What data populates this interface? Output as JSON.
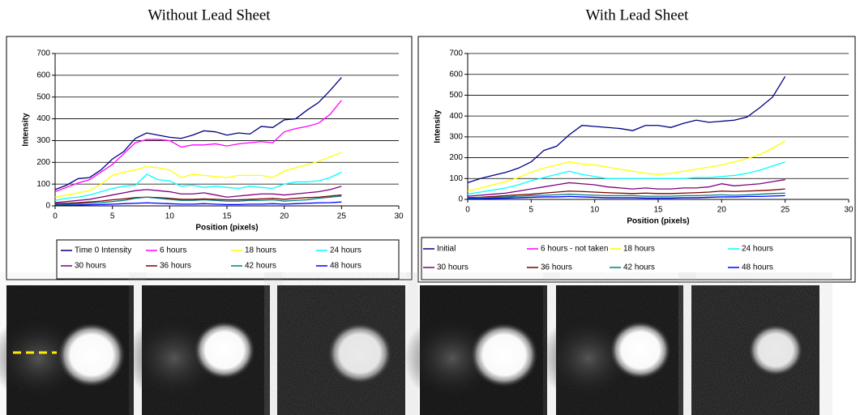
{
  "chart_data": [
    {
      "type": "line",
      "title": "Without Lead Sheet",
      "x_label": "Position (pixels)",
      "y_label": "Intensity",
      "x": [
        0,
        1,
        2,
        3,
        4,
        5,
        6,
        7,
        8,
        9,
        10,
        11,
        12,
        13,
        14,
        15,
        16,
        17,
        18,
        19,
        20,
        21,
        22,
        23,
        24,
        25
      ],
      "xlim": [
        0,
        30
      ],
      "xticks": [
        0,
        5,
        10,
        15,
        20,
        25,
        30
      ],
      "ylim": [
        0,
        700
      ],
      "yticks": [
        0,
        100,
        200,
        300,
        400,
        500,
        600,
        700
      ],
      "grid": true,
      "legend": "bottom",
      "series": [
        {
          "name": "Time 0 Intensity",
          "color": "#000080",
          "values": [
            75,
            95,
            125,
            130,
            165,
            215,
            250,
            310,
            335,
            325,
            315,
            310,
            325,
            345,
            340,
            325,
            335,
            330,
            365,
            360,
            395,
            400,
            440,
            475,
            530,
            590
          ]
        },
        {
          "name": "6 hours",
          "color": "#ff00ff",
          "values": [
            65,
            85,
            105,
            120,
            155,
            190,
            240,
            290,
            305,
            305,
            300,
            270,
            280,
            280,
            285,
            275,
            285,
            290,
            295,
            290,
            340,
            355,
            365,
            380,
            420,
            485
          ]
        },
        {
          "name": "18 hours",
          "color": "#ffff00",
          "values": [
            40,
            50,
            60,
            70,
            100,
            140,
            155,
            165,
            180,
            175,
            165,
            130,
            145,
            140,
            135,
            130,
            140,
            140,
            140,
            130,
            160,
            175,
            190,
            205,
            225,
            245
          ]
        },
        {
          "name": "24 hours",
          "color": "#00ffff",
          "values": [
            25,
            35,
            40,
            50,
            65,
            80,
            90,
            95,
            145,
            120,
            115,
            90,
            95,
            85,
            90,
            85,
            80,
            90,
            85,
            80,
            100,
            110,
            110,
            115,
            130,
            155
          ]
        },
        {
          "name": "30 hours",
          "color": "#800080",
          "values": [
            15,
            20,
            25,
            30,
            40,
            50,
            60,
            70,
            75,
            70,
            65,
            55,
            55,
            60,
            50,
            40,
            45,
            50,
            55,
            55,
            50,
            55,
            60,
            65,
            75,
            90
          ]
        },
        {
          "name": "36 hours",
          "color": "#800000",
          "values": [
            10,
            12,
            15,
            18,
            22,
            28,
            32,
            38,
            40,
            38,
            35,
            30,
            30,
            32,
            30,
            28,
            28,
            30,
            32,
            35,
            30,
            35,
            38,
            40,
            45,
            50
          ]
        },
        {
          "name": "42 hours",
          "color": "#008080",
          "values": [
            5,
            8,
            10,
            12,
            15,
            20,
            25,
            35,
            40,
            35,
            30,
            25,
            25,
            28,
            25,
            22,
            22,
            25,
            25,
            28,
            22,
            25,
            28,
            35,
            40,
            45
          ]
        },
        {
          "name": "48 hours",
          "color": "#0000ff",
          "values": [
            2,
            3,
            4,
            5,
            6,
            8,
            10,
            12,
            14,
            12,
            10,
            8,
            8,
            10,
            8,
            6,
            6,
            8,
            8,
            10,
            8,
            10,
            12,
            14,
            15,
            18
          ]
        }
      ]
    },
    {
      "type": "line",
      "title": "With Lead Sheet",
      "x_label": "Position (pixels)",
      "y_label": "Intensity",
      "x": [
        0,
        1,
        2,
        3,
        4,
        5,
        6,
        7,
        8,
        9,
        10,
        11,
        12,
        13,
        14,
        15,
        16,
        17,
        18,
        19,
        20,
        21,
        22,
        23,
        24,
        25
      ],
      "xlim": [
        0,
        30
      ],
      "xticks": [
        0,
        5,
        10,
        15,
        20,
        25,
        30
      ],
      "ylim": [
        0,
        700
      ],
      "yticks": [
        0,
        100,
        200,
        300,
        400,
        500,
        600,
        700
      ],
      "grid": true,
      "legend": "bottom",
      "series": [
        {
          "name": "Initial",
          "color": "#000080",
          "values": [
            80,
            100,
            115,
            130,
            150,
            180,
            235,
            255,
            310,
            355,
            350,
            345,
            340,
            330,
            355,
            355,
            345,
            365,
            380,
            370,
            375,
            380,
            395,
            440,
            490,
            590
          ]
        },
        {
          "name": "6 hours - not taken",
          "color": "#ff00ff",
          "values": [
            null,
            null,
            null,
            null,
            null,
            null,
            null,
            null,
            null,
            null,
            null,
            null,
            null,
            null,
            null,
            null,
            null,
            null,
            null,
            null,
            null,
            null,
            null,
            null,
            null,
            null
          ]
        },
        {
          "name": "18 hours",
          "color": "#ffff00",
          "values": [
            40,
            55,
            70,
            85,
            105,
            130,
            150,
            165,
            180,
            170,
            165,
            155,
            145,
            135,
            125,
            120,
            125,
            135,
            145,
            155,
            165,
            180,
            195,
            215,
            245,
            280
          ]
        },
        {
          "name": "24 hours",
          "color": "#00ffff",
          "values": [
            25,
            35,
            45,
            55,
            70,
            90,
            105,
            120,
            135,
            120,
            110,
            100,
            100,
            100,
            100,
            100,
            100,
            100,
            105,
            105,
            110,
            115,
            125,
            140,
            160,
            180
          ]
        },
        {
          "name": "30 hours",
          "color": "#800080",
          "values": [
            15,
            20,
            25,
            30,
            40,
            50,
            60,
            70,
            80,
            75,
            70,
            60,
            55,
            50,
            55,
            50,
            50,
            55,
            55,
            60,
            75,
            65,
            70,
            75,
            85,
            95
          ]
        },
        {
          "name": "36 hours",
          "color": "#800000",
          "values": [
            8,
            10,
            14,
            18,
            22,
            25,
            30,
            35,
            40,
            38,
            35,
            32,
            30,
            28,
            30,
            28,
            28,
            30,
            32,
            35,
            40,
            38,
            40,
            42,
            45,
            50
          ]
        },
        {
          "name": "42 hours",
          "color": "#008080",
          "values": [
            5,
            8,
            10,
            12,
            15,
            18,
            20,
            22,
            25,
            22,
            20,
            18,
            18,
            18,
            15,
            15,
            15,
            18,
            18,
            20,
            22,
            20,
            22,
            25,
            28,
            30
          ]
        },
        {
          "name": "48 hours",
          "color": "#0000ff",
          "values": [
            2,
            3,
            5,
            6,
            8,
            10,
            12,
            12,
            14,
            12,
            10,
            8,
            8,
            8,
            6,
            6,
            6,
            8,
            8,
            10,
            12,
            12,
            14,
            14,
            16,
            18
          ]
        }
      ]
    }
  ]
}
